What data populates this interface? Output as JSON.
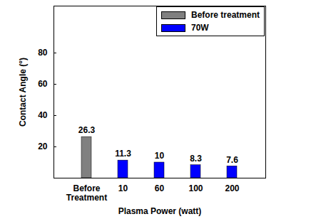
{
  "chart_data": {
    "type": "bar",
    "categories": [
      "Before\nTreatment",
      "10",
      "60",
      "100",
      "200"
    ],
    "series": [
      {
        "name": "Before treatment",
        "color": "#808080",
        "values": [
          26.3,
          null,
          null,
          null,
          null
        ]
      },
      {
        "name": "70W",
        "color": "#0000ff",
        "values": [
          null,
          11.3,
          10,
          8.3,
          7.6
        ]
      }
    ],
    "x_label": "Plasma Power (watt)",
    "y_label": "Contact Angle (°)",
    "ylim": [
      0,
      110
    ],
    "yticks": [
      20,
      40,
      60,
      80
    ],
    "legend": "top-right",
    "data_labels": true,
    "grid": false
  }
}
